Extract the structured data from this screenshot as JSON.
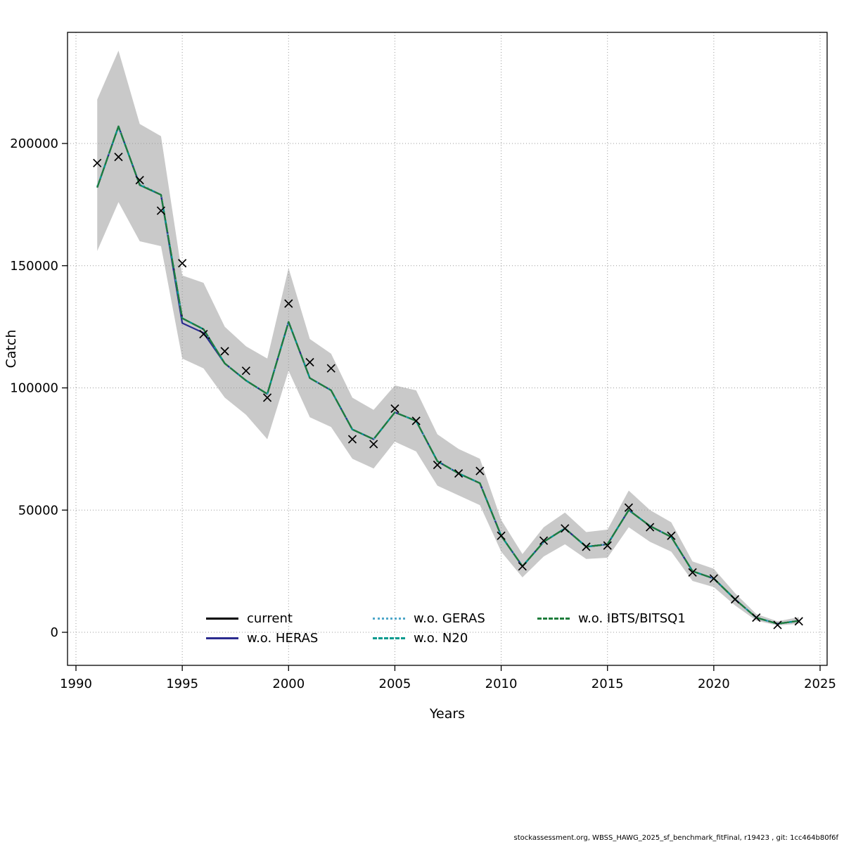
{
  "page": {
    "footer": "stockassessment.org, WBSS_HAWG_2025_sf_benchmark_fitFinal, r19423 , git: 1cc464b80f6f"
  },
  "chart_data": {
    "type": "line",
    "title": "",
    "xlabel": "Years",
    "ylabel": "Catch",
    "xlim": [
      1989.6,
      2025.4
    ],
    "ylim": [
      0,
      240000
    ],
    "x_ticks": [
      1990,
      1995,
      2000,
      2005,
      2010,
      2015,
      2020,
      2025
    ],
    "y_ticks": [
      0,
      50000,
      100000,
      150000,
      200000
    ],
    "grid": "dotted",
    "legend_position": "bottom-center-inside",
    "band_color": "#c9c9c9",
    "years": [
      1991,
      1992,
      1993,
      1994,
      1995,
      1996,
      1997,
      1998,
      1999,
      2000,
      2001,
      2002,
      2003,
      2004,
      2005,
      2006,
      2007,
      2008,
      2009,
      2010,
      2011,
      2012,
      2013,
      2014,
      2015,
      2016,
      2017,
      2018,
      2019,
      2020,
      2021,
      2022,
      2023,
      2024
    ],
    "band": {
      "lower": [
        156000,
        176000,
        160000,
        158000,
        112000,
        108000,
        96000,
        89000,
        79000,
        107000,
        88000,
        84000,
        71000,
        67000,
        78000,
        74000,
        60000,
        56000,
        52000,
        33000,
        22500,
        31000,
        36000,
        30000,
        30500,
        43000,
        37000,
        33000,
        21000,
        18500,
        11000,
        4800,
        2800,
        3500
      ],
      "upper": [
        218000,
        238000,
        208000,
        203000,
        146000,
        143000,
        125000,
        117000,
        112000,
        149000,
        120000,
        114000,
        96000,
        91000,
        101000,
        99000,
        81000,
        75000,
        71000,
        46000,
        32000,
        43000,
        49000,
        41000,
        42000,
        58000,
        50000,
        45000,
        29000,
        26000,
        16000,
        7500,
        4500,
        6200
      ]
    },
    "series": [
      {
        "name": "current",
        "color": "#000000",
        "dash": "solid",
        "values": [
          182000,
          207000,
          183000,
          179000,
          128500,
          124000,
          110000,
          103000,
          97500,
          127000,
          104000,
          99000,
          83000,
          79000,
          90000,
          86500,
          70000,
          65000,
          61000,
          39500,
          27000,
          37000,
          42500,
          35000,
          36000,
          50000,
          43500,
          39000,
          25000,
          22000,
          13500,
          6000,
          3500,
          4700
        ]
      },
      {
        "name": "w.o. HERAS",
        "color": "#2b2b8f",
        "dash": "solid",
        "values": [
          182000,
          207000,
          183000,
          179000,
          126500,
          122500,
          110000,
          103000,
          97500,
          127000,
          104000,
          99000,
          83000,
          79000,
          90000,
          86500,
          70000,
          65000,
          61000,
          39500,
          27000,
          37000,
          42500,
          35000,
          36000,
          50000,
          43500,
          39000,
          25000,
          22000,
          13500,
          6000,
          3500,
          4700
        ]
      },
      {
        "name": "w.o. GERAS",
        "color": "#4ea7c9",
        "dash": "dotted",
        "values": [
          182500,
          206500,
          183500,
          179000,
          128500,
          124000,
          110000,
          103000,
          97500,
          127000,
          104000,
          99000,
          83000,
          79000,
          90000,
          86500,
          70000,
          65000,
          61000,
          39500,
          27000,
          37000,
          42500,
          35000,
          36000,
          50000,
          43500,
          39000,
          25000,
          22000,
          13500,
          6000,
          3500,
          4700
        ]
      },
      {
        "name": "w.o. N20",
        "color": "#009a8e",
        "dash": "dashed",
        "values": [
          182000,
          207000,
          183000,
          179000,
          128500,
          124000,
          110000,
          103000,
          97500,
          127000,
          104000,
          99000,
          83000,
          79000,
          90000,
          86500,
          70000,
          65000,
          61000,
          39500,
          27000,
          37000,
          42500,
          35000,
          36000,
          50000,
          43500,
          39000,
          25000,
          22000,
          13500,
          6000,
          3500,
          4700
        ]
      },
      {
        "name": "w.o. IBTS/BITSQ1",
        "color": "#1e7d3c",
        "dash": "longdash",
        "values": [
          182000,
          207000,
          183000,
          179000,
          128500,
          124000,
          110000,
          103000,
          97500,
          127000,
          104000,
          99000,
          83000,
          79000,
          90000,
          86500,
          70000,
          65000,
          61000,
          39500,
          27000,
          37000,
          42500,
          35000,
          36000,
          50000,
          43500,
          39000,
          25000,
          22000,
          13500,
          6000,
          3500,
          4700
        ]
      }
    ],
    "observations": {
      "marker": "x",
      "values": [
        192000,
        194500,
        185000,
        172500,
        151000,
        122000,
        115000,
        107000,
        96000,
        134500,
        110500,
        108000,
        79000,
        77000,
        91500,
        86500,
        68500,
        65000,
        66000,
        39500,
        27000,
        37500,
        42500,
        35000,
        35500,
        51000,
        43000,
        39500,
        24500,
        22000,
        13500,
        6000,
        3000,
        4500
      ]
    }
  }
}
